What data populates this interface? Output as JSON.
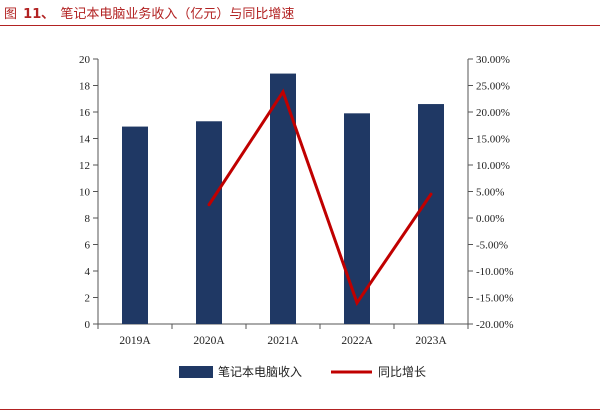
{
  "figure": {
    "label": "图",
    "number": "11、",
    "caption": "笔记本电脑业务收入（亿元）与同比增速"
  },
  "colors": {
    "bar": "#1f3864",
    "line": "#c00000",
    "rule": "#b22222"
  },
  "chart_data": {
    "type": "bar",
    "title": "笔记本电脑业务收入（亿元）与同比增速",
    "categories": [
      "2019A",
      "2020A",
      "2021A",
      "2022A",
      "2023A"
    ],
    "series": [
      {
        "name": "笔记本电脑收入",
        "type": "bar",
        "axis": "left",
        "values": [
          14.9,
          15.3,
          18.9,
          15.9,
          16.6
        ]
      },
      {
        "name": "同比增长",
        "type": "line",
        "axis": "right",
        "values": [
          null,
          2.5,
          23.8,
          -16.0,
          4.5
        ]
      }
    ],
    "ylim_left": [
      0,
      20
    ],
    "yticks_left": [
      "0",
      "2",
      "4",
      "6",
      "8",
      "10",
      "12",
      "14",
      "16",
      "18",
      "20"
    ],
    "ylim_right": [
      -20,
      30
    ],
    "yticks_right": [
      "-20.00%",
      "-15.00%",
      "-10.00%",
      "-5.00%",
      "0.00%",
      "5.00%",
      "10.00%",
      "15.00%",
      "20.00%",
      "25.00%",
      "30.00%"
    ],
    "legend": [
      "笔记本电脑收入",
      "同比增长"
    ],
    "legend_position": "bottom"
  }
}
